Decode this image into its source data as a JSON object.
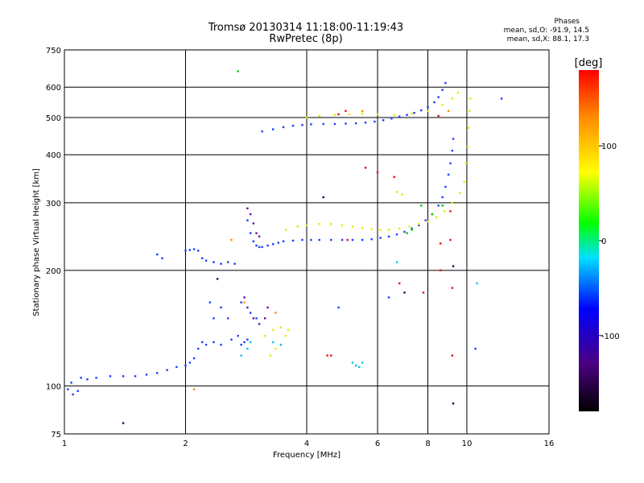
{
  "header": {
    "title": "Tromsø 20130314 11:18:00-11:19:43",
    "subtitle": "RwPretec (8p)",
    "phases_title": "Phases",
    "phases_o": "mean, sd,O: -91.9, 14.5",
    "phases_x": "mean, sd,X:  88.1, 17.3"
  },
  "chart_data": {
    "type": "scatter",
    "title": "Tromsø 20130314 11:18:00-11:19:43",
    "subtitle": "RwPretec (8p)",
    "xlabel": "Frequency [MHz]",
    "ylabel": "Stationary phase Virtual Height [km]",
    "x_scale": "log",
    "y_scale": "log",
    "xlim": [
      1,
      16
    ],
    "ylim": [
      75,
      750
    ],
    "x_ticks": [
      1,
      2,
      4,
      6,
      8,
      10,
      16
    ],
    "y_ticks": [
      75,
      100,
      200,
      300,
      400,
      500,
      600,
      750
    ],
    "grid": true,
    "colorbar": {
      "label": "[deg]",
      "range": [
        -180,
        180
      ],
      "ticks": [
        100,
        0,
        -100
      ],
      "colors": [
        "#000000",
        "#4b0082",
        "#0000ff",
        "#00ffff",
        "#00ff00",
        "#ffff00",
        "#ff8c00",
        "#ff0000"
      ]
    },
    "series": [
      {
        "color": "#1a3cff",
        "points": [
          [
            1.02,
            98
          ],
          [
            1.04,
            102
          ],
          [
            1.05,
            95
          ],
          [
            1.08,
            97
          ],
          [
            1.1,
            105
          ],
          [
            1.14,
            104
          ],
          [
            1.2,
            105
          ],
          [
            1.3,
            106
          ],
          [
            1.4,
            106
          ],
          [
            1.5,
            106
          ],
          [
            1.6,
            107
          ],
          [
            1.7,
            108
          ],
          [
            1.8,
            110
          ],
          [
            1.9,
            112
          ],
          [
            2.0,
            113
          ],
          [
            2.05,
            115
          ],
          [
            2.1,
            118
          ],
          [
            2.15,
            125
          ],
          [
            2.2,
            130
          ],
          [
            2.25,
            128
          ],
          [
            2.35,
            130
          ],
          [
            2.45,
            128
          ],
          [
            2.6,
            132
          ],
          [
            2.7,
            135
          ],
          [
            2.75,
            128
          ],
          [
            2.8,
            130
          ],
          [
            2.85,
            132
          ],
          [
            2.0,
            225
          ],
          [
            2.05,
            226
          ],
          [
            2.1,
            227
          ],
          [
            2.15,
            225
          ],
          [
            2.2,
            215
          ],
          [
            2.25,
            212
          ],
          [
            2.35,
            210
          ],
          [
            2.45,
            208
          ],
          [
            2.55,
            210
          ],
          [
            2.65,
            208
          ],
          [
            2.85,
            270
          ],
          [
            2.9,
            250
          ],
          [
            2.95,
            238
          ],
          [
            3.0,
            232
          ],
          [
            3.05,
            230
          ],
          [
            3.1,
            230
          ],
          [
            3.2,
            232
          ],
          [
            3.3,
            234
          ],
          [
            3.4,
            236
          ],
          [
            3.5,
            238
          ],
          [
            3.7,
            239
          ],
          [
            3.9,
            240
          ],
          [
            4.1,
            240
          ],
          [
            4.3,
            240
          ],
          [
            4.6,
            240
          ],
          [
            4.9,
            240
          ],
          [
            5.2,
            240
          ],
          [
            5.5,
            240
          ],
          [
            5.8,
            241
          ],
          [
            6.1,
            243
          ],
          [
            6.4,
            245
          ],
          [
            6.7,
            248
          ],
          [
            7.0,
            252
          ],
          [
            7.3,
            257
          ],
          [
            7.6,
            262
          ],
          [
            7.9,
            270
          ],
          [
            8.2,
            280
          ],
          [
            8.5,
            295
          ],
          [
            8.7,
            310
          ],
          [
            8.85,
            330
          ],
          [
            9.0,
            355
          ],
          [
            9.1,
            380
          ],
          [
            9.2,
            410
          ],
          [
            9.25,
            440
          ],
          [
            3.1,
            460
          ],
          [
            3.3,
            466
          ],
          [
            3.5,
            472
          ],
          [
            3.7,
            476
          ],
          [
            3.9,
            478
          ],
          [
            4.1,
            480
          ],
          [
            4.4,
            481
          ],
          [
            4.7,
            481
          ],
          [
            5.0,
            482
          ],
          [
            5.3,
            483
          ],
          [
            5.6,
            485
          ],
          [
            5.9,
            488
          ],
          [
            6.2,
            492
          ],
          [
            6.5,
            497
          ],
          [
            6.8,
            503
          ],
          [
            7.1,
            508
          ],
          [
            7.4,
            514
          ],
          [
            7.7,
            522
          ],
          [
            8.0,
            532
          ],
          [
            8.3,
            548
          ],
          [
            8.5,
            565
          ],
          [
            8.7,
            590
          ],
          [
            8.85,
            615
          ],
          [
            2.3,
            165
          ],
          [
            2.35,
            150
          ],
          [
            2.45,
            160
          ],
          [
            2.55,
            150
          ],
          [
            2.75,
            165
          ],
          [
            2.9,
            155
          ],
          [
            3.0,
            150
          ],
          [
            6.4,
            170
          ],
          [
            10.5,
            125
          ],
          [
            12.2,
            560
          ],
          [
            1.7,
            220
          ],
          [
            1.75,
            215
          ],
          [
            4.8,
            160
          ]
        ]
      },
      {
        "color": "#e8e800",
        "points": [
          [
            3.55,
            255
          ],
          [
            3.8,
            260
          ],
          [
            4.0,
            262
          ],
          [
            4.3,
            264
          ],
          [
            4.6,
            264
          ],
          [
            4.9,
            262
          ],
          [
            5.2,
            260
          ],
          [
            5.5,
            258
          ],
          [
            5.8,
            256
          ],
          [
            6.1,
            255
          ],
          [
            6.4,
            255
          ],
          [
            6.8,
            257
          ],
          [
            7.2,
            260
          ],
          [
            7.6,
            264
          ],
          [
            8.0,
            268
          ],
          [
            8.4,
            275
          ],
          [
            8.8,
            285
          ],
          [
            9.2,
            300
          ],
          [
            9.6,
            318
          ],
          [
            9.85,
            340
          ],
          [
            9.95,
            380
          ],
          [
            10.05,
            420
          ],
          [
            10.1,
            470
          ],
          [
            10.15,
            520
          ],
          [
            10.2,
            560
          ],
          [
            4.0,
            500
          ],
          [
            4.3,
            505
          ],
          [
            4.7,
            508
          ],
          [
            5.1,
            510
          ],
          [
            5.5,
            512
          ],
          [
            6.0,
            510
          ],
          [
            6.6,
            508
          ],
          [
            7.3,
            512
          ],
          [
            8.0,
            520
          ],
          [
            8.7,
            540
          ],
          [
            9.2,
            560
          ],
          [
            9.5,
            580
          ],
          [
            3.15,
            135
          ],
          [
            3.3,
            140
          ],
          [
            3.45,
            142
          ],
          [
            3.55,
            135
          ],
          [
            3.6,
            140
          ],
          [
            3.45,
            128
          ],
          [
            3.35,
            125
          ],
          [
            3.25,
            120
          ],
          [
            6.7,
            320
          ],
          [
            6.9,
            315
          ]
        ]
      },
      {
        "color": "#6a0dad",
        "points": [
          [
            2.85,
            290
          ],
          [
            2.9,
            280
          ],
          [
            2.95,
            265
          ],
          [
            3.0,
            250
          ],
          [
            3.05,
            245
          ],
          [
            2.95,
            150
          ],
          [
            3.05,
            145
          ],
          [
            3.15,
            150
          ],
          [
            3.2,
            160
          ],
          [
            2.8,
            170
          ],
          [
            2.85,
            160
          ]
        ]
      },
      {
        "color": "#00c8e6",
        "points": [
          [
            2.75,
            120
          ],
          [
            2.85,
            125
          ],
          [
            2.9,
            130
          ],
          [
            3.3,
            130
          ],
          [
            3.45,
            128
          ],
          [
            5.2,
            115
          ],
          [
            5.3,
            113
          ],
          [
            5.4,
            112
          ],
          [
            5.5,
            115
          ],
          [
            6.7,
            210
          ],
          [
            10.6,
            185
          ]
        ]
      },
      {
        "color": "#00c800",
        "points": [
          [
            7.3,
            255
          ],
          [
            7.1,
            250
          ],
          [
            7.7,
            295
          ],
          [
            8.2,
            280
          ],
          [
            2.7,
            660
          ],
          [
            8.7,
            295
          ]
        ]
      },
      {
        "color": "#ff8c00",
        "points": [
          [
            2.1,
            98
          ],
          [
            2.8,
            165
          ],
          [
            2.6,
            240
          ],
          [
            3.35,
            155
          ],
          [
            9.0,
            520
          ],
          [
            5.5,
            520
          ]
        ]
      },
      {
        "color": "#e01010",
        "points": [
          [
            5.6,
            370
          ],
          [
            6.0,
            360
          ],
          [
            6.8,
            185
          ],
          [
            7.8,
            175
          ],
          [
            8.6,
            235
          ],
          [
            8.6,
            200
          ],
          [
            9.1,
            240
          ],
          [
            9.2,
            180
          ],
          [
            9.2,
            120
          ],
          [
            9.1,
            285
          ],
          [
            5.0,
            520
          ],
          [
            4.5,
            120
          ],
          [
            4.6,
            120
          ],
          [
            6.6,
            350
          ],
          [
            8.5,
            505
          ],
          [
            4.8,
            510
          ],
          [
            5.05,
            240
          ]
        ]
      },
      {
        "color": "#101060",
        "points": [
          [
            1.4,
            80
          ],
          [
            4.4,
            310
          ],
          [
            9.25,
            205
          ],
          [
            9.25,
            90
          ],
          [
            7.0,
            175
          ],
          [
            2.4,
            190
          ]
        ]
      }
    ]
  }
}
